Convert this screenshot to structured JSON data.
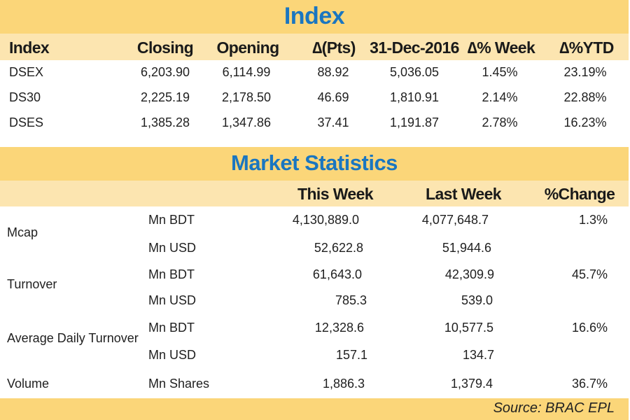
{
  "index_section": {
    "title": "Index",
    "headers": [
      "Index",
      "Closing",
      "Opening",
      "∆(Pts)",
      "31-Dec-2016",
      "∆% Week",
      "∆%YTD"
    ],
    "rows": [
      [
        "DSEX",
        "6,203.90",
        "6,114.99",
        "88.92",
        "5,036.05",
        "1.45%",
        "23.19%"
      ],
      [
        "DS30",
        "2,225.19",
        "2,178.50",
        "46.69",
        "1,810.91",
        "2.14%",
        "22.88%"
      ],
      [
        "DSES",
        "1,385.28",
        "1,347.86",
        "37.41",
        "1,191.87",
        "2.78%",
        "16.23%"
      ]
    ]
  },
  "market_section": {
    "title": "Market Statistics",
    "headers": [
      "This Week",
      "Last Week",
      "%Change"
    ],
    "groups": [
      {
        "label": "Mcap",
        "rows": [
          {
            "unit": "Mn BDT",
            "this_week": "4,130,889.0",
            "last_week": "4,077,648.7",
            "change": "1.3%"
          },
          {
            "unit": "Mn USD",
            "this_week": "52,622.8",
            "last_week": "51,944.6",
            "change": ""
          }
        ]
      },
      {
        "label": "Turnover",
        "rows": [
          {
            "unit": "Mn BDT",
            "this_week": "61,643.0",
            "last_week": "42,309.9",
            "change": "45.7%"
          },
          {
            "unit": "Mn USD",
            "this_week": "785.3",
            "last_week": "539.0",
            "change": ""
          }
        ]
      },
      {
        "label": "Average Daily Turnover",
        "rows": [
          {
            "unit": "Mn BDT",
            "this_week": "12,328.6",
            "last_week": "10,577.5",
            "change": "16.6%"
          },
          {
            "unit": "Mn USD",
            "this_week": "157.1",
            "last_week": "134.7",
            "change": ""
          }
        ]
      },
      {
        "label": "Volume",
        "rows": [
          {
            "unit": "Mn Shares",
            "this_week": "1,886.3",
            "last_week": "1,379.4",
            "change": "36.7%"
          }
        ]
      }
    ]
  },
  "source": "Source: BRAC EPL"
}
